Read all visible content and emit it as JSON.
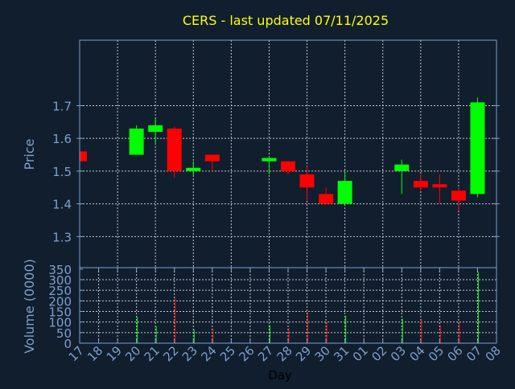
{
  "chart_data": {
    "type": "candlestick",
    "title": "CERS - last updated 07/11/2025",
    "xlabel": "Day",
    "price_panel": {
      "ylabel": "Price",
      "ylim": [
        1.205,
        1.9
      ],
      "yticks": [
        1.3,
        1.4,
        1.5,
        1.6,
        1.7
      ],
      "ytick_labels": [
        "1.3",
        "1.4",
        "1.5",
        "1.6",
        "1.7"
      ],
      "grid": true
    },
    "volume_panel": {
      "ylabel": "Volume (0000)",
      "ylim": [
        0,
        357
      ],
      "yticks": [
        0,
        50,
        100,
        150,
        200,
        250,
        300,
        350
      ],
      "ytick_labels": [
        "0",
        "50",
        "100",
        "150",
        "200",
        "250",
        "300",
        "350"
      ],
      "grid": true
    },
    "x_tick_labels": [
      "17",
      "18",
      "19",
      "20",
      "21",
      "22",
      "23",
      "24",
      "25",
      "26",
      "27",
      "28",
      "29",
      "30",
      "31",
      "01",
      "02",
      "03",
      "04",
      "05",
      "06",
      "07",
      "08"
    ],
    "candles": [
      {
        "day": "17",
        "open": 1.56,
        "high": 1.56,
        "low": 1.53,
        "close": 1.53,
        "volume": 0
      },
      {
        "day": "20",
        "open": 1.55,
        "high": 1.64,
        "low": 1.55,
        "close": 1.63,
        "volume": 125
      },
      {
        "day": "21",
        "open": 1.62,
        "high": 1.66,
        "low": 1.58,
        "close": 1.64,
        "volume": 80
      },
      {
        "day": "22",
        "open": 1.63,
        "high": 1.635,
        "low": 1.48,
        "close": 1.5,
        "volume": 215
      },
      {
        "day": "23",
        "open": 1.5,
        "high": 1.53,
        "low": 1.485,
        "close": 1.51,
        "volume": 65
      },
      {
        "day": "24",
        "open": 1.55,
        "high": 1.55,
        "low": 1.5,
        "close": 1.53,
        "volume": 70
      },
      {
        "day": "27",
        "open": 1.53,
        "high": 1.545,
        "low": 1.49,
        "close": 1.54,
        "volume": 85
      },
      {
        "day": "28",
        "open": 1.53,
        "high": 1.53,
        "low": 1.49,
        "close": 1.5,
        "volume": 70
      },
      {
        "day": "29",
        "open": 1.49,
        "high": 1.515,
        "low": 1.41,
        "close": 1.45,
        "volume": 145
      },
      {
        "day": "30",
        "open": 1.43,
        "high": 1.45,
        "low": 1.4,
        "close": 1.4,
        "volume": 100
      },
      {
        "day": "31",
        "open": 1.4,
        "high": 1.5,
        "low": 1.4,
        "close": 1.47,
        "volume": 130
      },
      {
        "day": "03",
        "open": 1.5,
        "high": 1.535,
        "low": 1.43,
        "close": 1.52,
        "volume": 115
      },
      {
        "day": "04",
        "open": 1.47,
        "high": 1.49,
        "low": 1.44,
        "close": 1.45,
        "volume": 115
      },
      {
        "day": "05",
        "open": 1.46,
        "high": 1.49,
        "low": 1.4,
        "close": 1.45,
        "volume": 85
      },
      {
        "day": "06",
        "open": 1.44,
        "high": 1.45,
        "low": 1.38,
        "close": 1.41,
        "volume": 100
      },
      {
        "day": "07",
        "open": 1.43,
        "high": 1.725,
        "low": 1.42,
        "close": 1.71,
        "volume": 335
      }
    ],
    "colors": {
      "background": "#101e2e",
      "up": "#00ff00",
      "down": "#ff0000",
      "axis": "#7f9fcc",
      "title": "#ffff00",
      "grid": "#c8c8c8"
    }
  }
}
